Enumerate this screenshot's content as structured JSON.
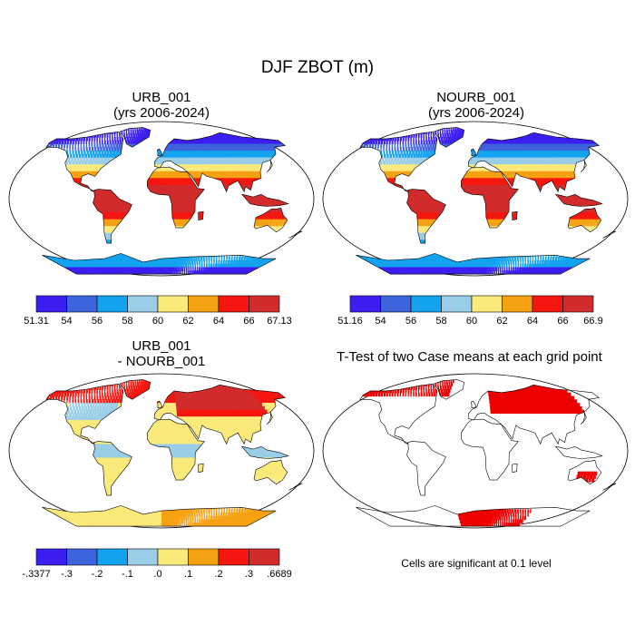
{
  "figure": {
    "title": "DJF ZBOT (m)"
  },
  "panels": [
    {
      "id": "p1",
      "title_line1": "URB_001",
      "title_line2": "(yrs 2006-2024)",
      "colorbar": {
        "colors": [
          "#3a1ff0",
          "#3d63dd",
          "#12a2ee",
          "#99cde8",
          "#fbe97a",
          "#f6a112",
          "#f5160f",
          "#d12b2b"
        ],
        "labels": [
          "51.31",
          "54",
          "56",
          "58",
          "60",
          "62",
          "64",
          "66",
          "67.13"
        ]
      }
    },
    {
      "id": "p2",
      "title_line1": "NOURB_001",
      "title_line2": "(yrs 2006-2024)",
      "colorbar": {
        "colors": [
          "#3a1ff0",
          "#3d63dd",
          "#12a2ee",
          "#99cde8",
          "#fbe97a",
          "#f6a112",
          "#f5160f",
          "#d12b2b"
        ],
        "labels": [
          "51.16",
          "54",
          "56",
          "58",
          "60",
          "62",
          "64",
          "66",
          "66.9"
        ]
      }
    },
    {
      "id": "p3",
      "title_line1": "URB_001",
      "title_line2": "- NOURB_001",
      "colorbar": {
        "colors": [
          "#3a1ff0",
          "#3d63dd",
          "#12a2ee",
          "#99cde8",
          "#fbe97a",
          "#f6a112",
          "#f5160f",
          "#d12b2b"
        ],
        "labels": [
          "-.3377",
          "-.3",
          "-.2",
          "-.1",
          ".0",
          ".1",
          ".2",
          ".3",
          ".6689"
        ]
      }
    },
    {
      "id": "p4",
      "title_line1": "T-Test of two Case means at each grid point",
      "note": "Cells are significant at 0.1 level",
      "significance_color": "#ee0000"
    }
  ]
}
